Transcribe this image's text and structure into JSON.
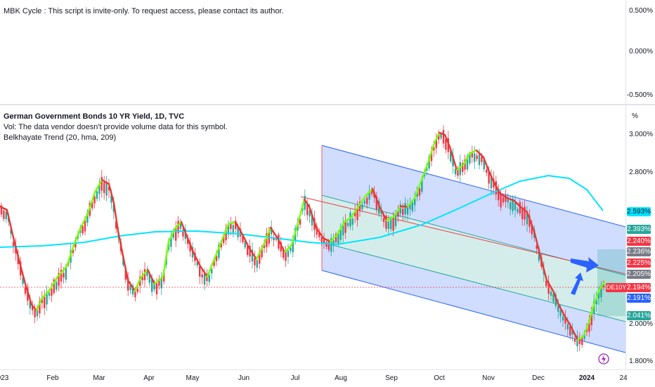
{
  "top_pane": {
    "legend": "MBK Cycle : This script is invite-only. To request access, please contact its author.",
    "scale_ticks": [
      "0.500%",
      "0.000%",
      "-0.500%"
    ]
  },
  "main_pane": {
    "title": "German Government Bonds 10 YR Yield, 1D, TVC",
    "vol_text": "Vol: The data vendor doesn't provide volume data for this symbol.",
    "indicator": "Belkhayate Trend (20, hma, 209)",
    "scale_unit": "%",
    "scale_ticks": [
      "3.000%",
      "2.800%",
      "2.000%",
      "1.800%"
    ],
    "symbol": "DE10Y",
    "price_tags": [
      {
        "text": "2.593%",
        "color": "#00e5ff",
        "text_color": "#131722"
      },
      {
        "text": "2.393%",
        "color": "#26a69a",
        "text_color": "#ffffff"
      },
      {
        "text": "2.240%",
        "color": "#f23645",
        "text_color": "#ffffff"
      },
      {
        "text": "2.236%",
        "color": "#787b86",
        "text_color": "#ffffff"
      },
      {
        "text": "2.225%",
        "color": "#f23645",
        "text_color": "#ffffff"
      },
      {
        "text": "2.205%",
        "color": "#787b86",
        "text_color": "#ffffff"
      },
      {
        "text": "2.194%",
        "color": "#f23645",
        "text_color": "#ffffff"
      },
      {
        "text": "2.191%",
        "color": "#2962ff",
        "text_color": "#ffffff"
      },
      {
        "text": "2.041%",
        "color": "#26a69a",
        "text_color": "#ffffff"
      }
    ]
  },
  "time_axis": [
    "023",
    "Feb",
    "Mar",
    "Apr",
    "May",
    "Jun",
    "Jul",
    "Aug",
    "Sep",
    "Oct",
    "Nov",
    "Dec",
    "2024",
    "24"
  ],
  "colors": {
    "up": "#26a69a",
    "down": "#f23645",
    "hma": "#00e5ff",
    "channel": "#2962ff",
    "trend_down": "#e53935",
    "trend_up": "#76ff03"
  },
  "chart_data": {
    "type": "candlestick",
    "series": "German Government Bonds 10 YR Yield",
    "x": [
      "Jan",
      "Feb",
      "Mar",
      "Apr",
      "May",
      "Jun",
      "Jul",
      "Aug",
      "Sep",
      "Oct",
      "Nov",
      "Dec",
      "Jan 2024"
    ],
    "close_approx": [
      2.3,
      2.25,
      2.7,
      2.25,
      2.3,
      2.4,
      2.55,
      2.5,
      2.65,
      2.95,
      2.75,
      2.4,
      2.19
    ],
    "ylim": [
      1.75,
      3.05
    ],
    "last_price": 2.194
  }
}
